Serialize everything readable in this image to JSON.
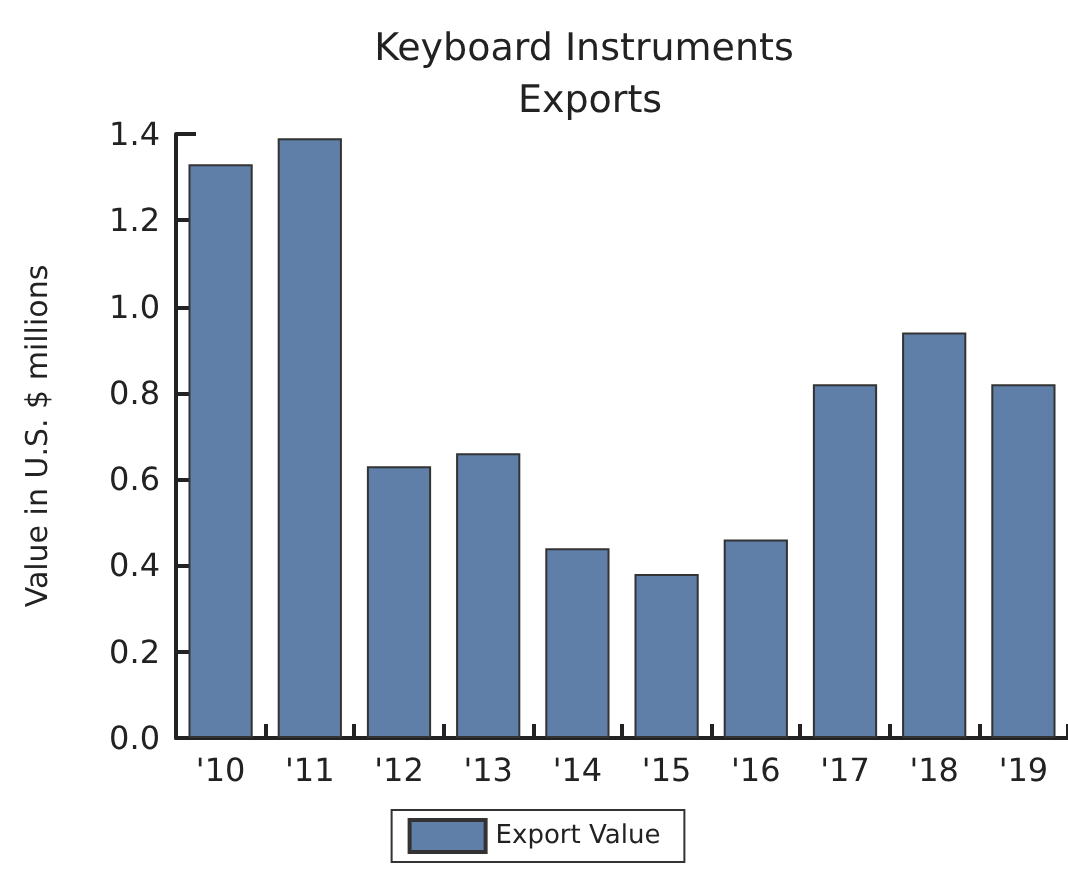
{
  "chart_data": {
    "type": "bar",
    "title": "Keyboard Instruments Exports",
    "ylabel": "Value in U.S. $ millions",
    "categories": [
      "'10",
      "'11",
      "'12",
      "'13",
      "'14",
      "'15",
      "'16",
      "'17",
      "'18",
      "'19"
    ],
    "series": [
      {
        "name": "Export Value",
        "color": "#5f7fa8",
        "values": [
          1.33,
          1.39,
          0.63,
          0.66,
          0.44,
          0.38,
          0.46,
          0.82,
          0.94,
          0.82
        ]
      }
    ],
    "ylim": [
      0,
      1.4
    ],
    "yticks": [
      {
        "value": 0,
        "label": "0.0"
      },
      {
        "value": 0.2,
        "label": "0.2"
      },
      {
        "value": 0.4,
        "label": "0.4"
      },
      {
        "value": 0.6,
        "label": "0.6"
      },
      {
        "value": 0.8,
        "label": "0.8"
      },
      {
        "value": 1,
        "label": "1.0"
      },
      {
        "value": 1.2,
        "label": "1.2"
      },
      {
        "value": 1.4,
        "label": "1.4"
      }
    ],
    "grid": false,
    "legend": "bottom"
  }
}
